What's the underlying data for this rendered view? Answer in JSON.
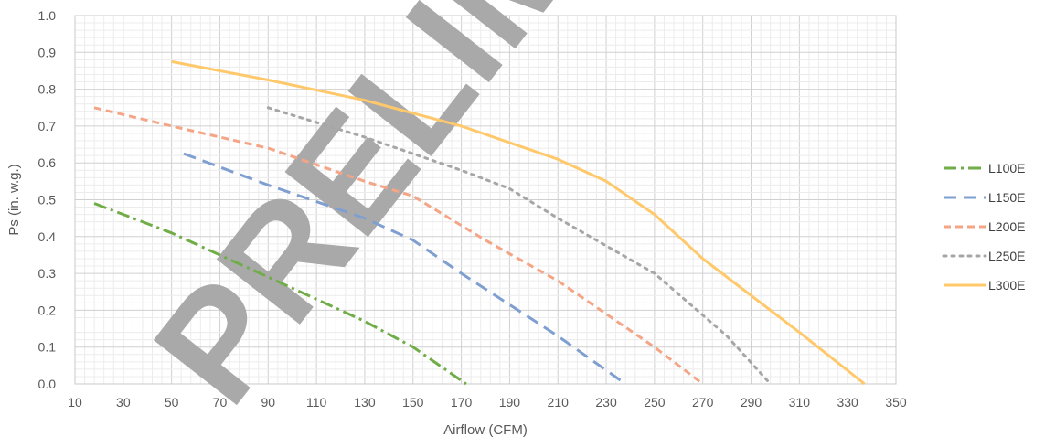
{
  "chart_data": {
    "type": "line",
    "xlabel": "Airflow (CFM)",
    "ylabel": "Ps (in. w.g.)",
    "xlim": [
      10,
      350
    ],
    "ylim": [
      0,
      1.0
    ],
    "x_ticks": [
      "10",
      "30",
      "50",
      "70",
      "90",
      "110",
      "130",
      "150",
      "170",
      "190",
      "210",
      "230",
      "250",
      "270",
      "290",
      "310",
      "330",
      "350"
    ],
    "y_ticks": [
      "0.0",
      "0.1",
      "0.2",
      "0.3",
      "0.4",
      "0.5",
      "0.6",
      "0.7",
      "0.8",
      "0.9",
      "1.0"
    ],
    "grid": "major and minor",
    "legend_position": "right",
    "watermark": "PRELIMINARY",
    "series": [
      {
        "name": "L100E",
        "color": "#70AD47",
        "dash": "dash-dot",
        "points": [
          [
            18,
            0.49
          ],
          [
            50,
            0.41
          ],
          [
            90,
            0.29
          ],
          [
            130,
            0.17
          ],
          [
            150,
            0.1
          ],
          [
            172,
            0.0
          ]
        ]
      },
      {
        "name": "L150E",
        "color": "#7F9FD1",
        "dash": "dash",
        "points": [
          [
            55,
            0.625
          ],
          [
            90,
            0.54
          ],
          [
            130,
            0.45
          ],
          [
            150,
            0.39
          ],
          [
            170,
            0.3
          ],
          [
            210,
            0.13
          ],
          [
            238,
            0.0
          ]
        ]
      },
      {
        "name": "L200E",
        "color": "#F4A585",
        "dash": "short-dash",
        "points": [
          [
            18,
            0.75
          ],
          [
            50,
            0.7
          ],
          [
            90,
            0.64
          ],
          [
            130,
            0.55
          ],
          [
            150,
            0.51
          ],
          [
            180,
            0.39
          ],
          [
            210,
            0.28
          ],
          [
            250,
            0.1
          ],
          [
            270,
            0.0
          ]
        ]
      },
      {
        "name": "L250E",
        "color": "#A6A6A6",
        "dash": "dot",
        "points": [
          [
            90,
            0.75
          ],
          [
            130,
            0.67
          ],
          [
            170,
            0.58
          ],
          [
            190,
            0.53
          ],
          [
            210,
            0.45
          ],
          [
            250,
            0.3
          ],
          [
            280,
            0.13
          ],
          [
            298,
            0.0
          ]
        ]
      },
      {
        "name": "L300E",
        "color": "#FFC96B",
        "dash": "solid",
        "points": [
          [
            50,
            0.875
          ],
          [
            90,
            0.825
          ],
          [
            130,
            0.77
          ],
          [
            170,
            0.7
          ],
          [
            210,
            0.61
          ],
          [
            230,
            0.55
          ],
          [
            250,
            0.46
          ],
          [
            270,
            0.34
          ],
          [
            310,
            0.14
          ],
          [
            337,
            0.0
          ]
        ]
      }
    ]
  }
}
